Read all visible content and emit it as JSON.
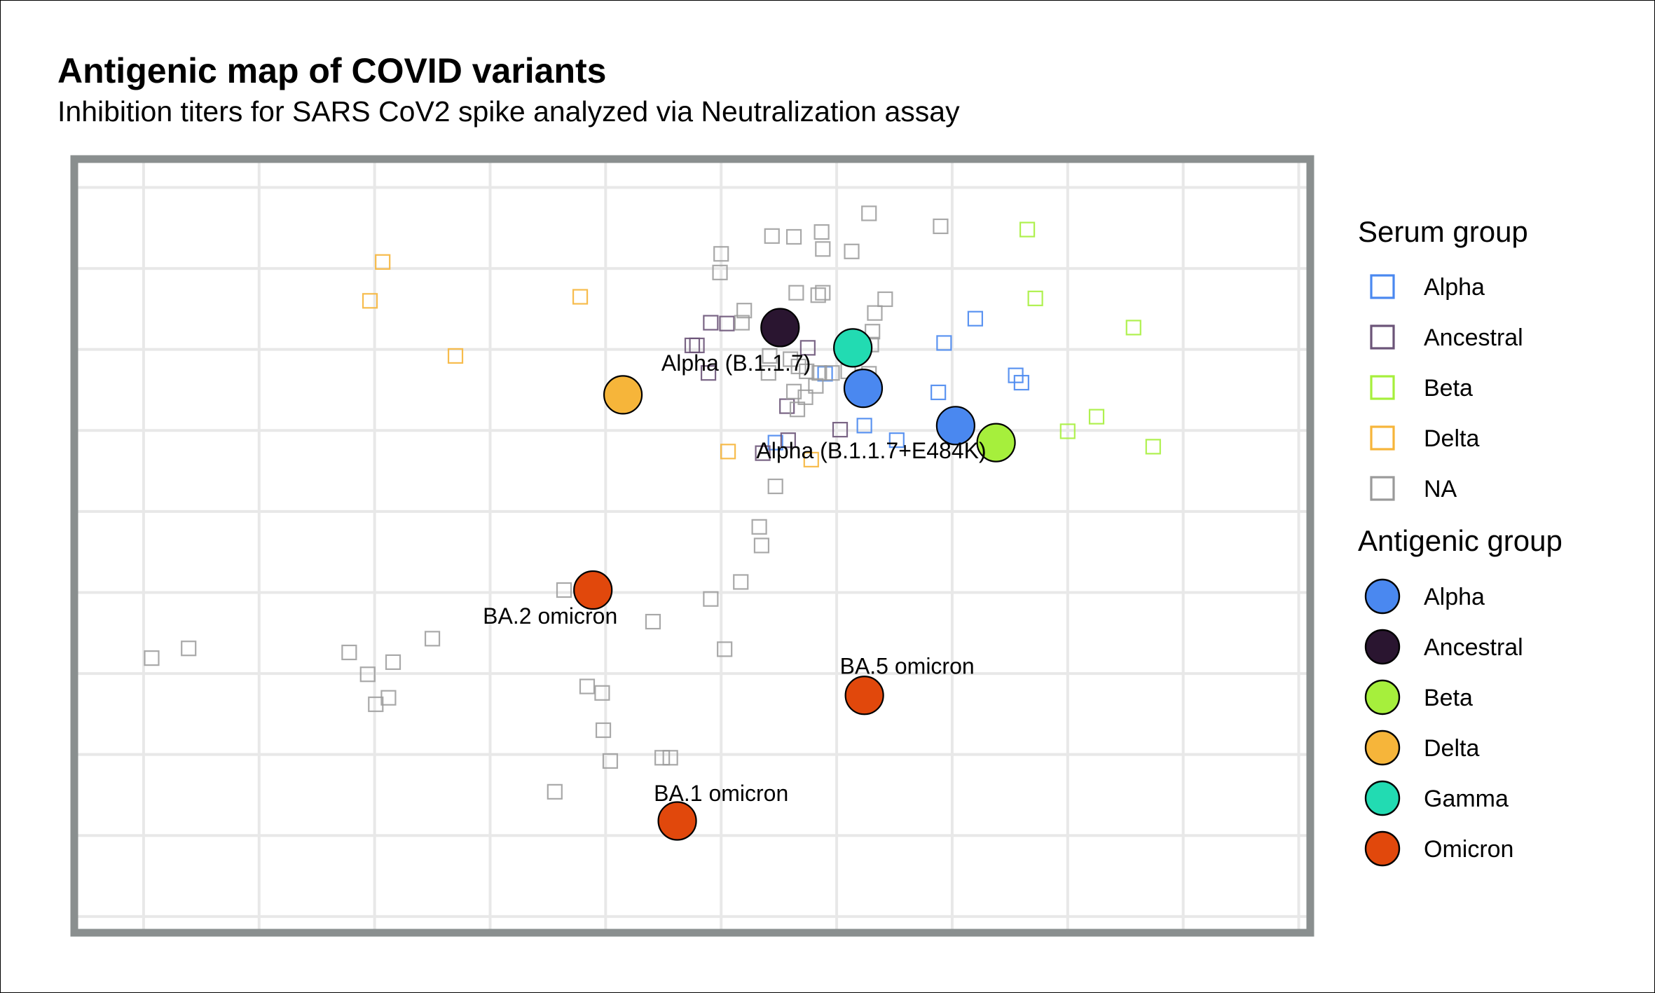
{
  "title": "Antigenic map of COVID variants",
  "subtitle": "Inhibition titers for SARS CoV2 spike analyzed via Neutralization assay",
  "chart_data": {
    "type": "scatter",
    "title": "Antigenic map of COVID variants",
    "subtitle": "Inhibition titers for SARS CoV2 spike analyzed via Neutralization assay",
    "xlabel": "",
    "ylabel": "",
    "xlim": [
      -5.6,
      5.1
    ],
    "ylim": [
      -6.2,
      3.35
    ],
    "grid": true,
    "axis_ticks_shown": false,
    "colors": {
      "Alpha": "#4a88f0",
      "Ancestral": "#2a1530",
      "Beta": "#a6ef3c",
      "Delta": "#f6b53a",
      "Gamma": "#22dbb2",
      "Omicron": "#e1480c",
      "NA": "#9a9a9a",
      "AncestralSerum": "#6b5478",
      "frame": "#8a8f8f",
      "grid": "#e8e8e8"
    },
    "legend_serum": {
      "title": "Serum group",
      "entries": [
        {
          "label": "Alpha",
          "key": "Alpha"
        },
        {
          "label": "Ancestral",
          "key": "AncestralSerum"
        },
        {
          "label": "Beta",
          "key": "Beta"
        },
        {
          "label": "Delta",
          "key": "Delta"
        },
        {
          "label": "NA",
          "key": "NA"
        }
      ]
    },
    "legend_antigen": {
      "title": "Antigenic group",
      "entries": [
        {
          "label": "Alpha",
          "key": "Alpha"
        },
        {
          "label": "Ancestral",
          "key": "Ancestral"
        },
        {
          "label": "Beta",
          "key": "Beta"
        },
        {
          "label": "Delta",
          "key": "Delta"
        },
        {
          "label": "Gamma",
          "key": "Gamma"
        },
        {
          "label": "Omicron",
          "key": "Omicron"
        }
      ]
    },
    "antigens": [
      {
        "group": "Ancestral",
        "x": 0.51,
        "y": 1.27,
        "label": ""
      },
      {
        "group": "Gamma",
        "x": 1.14,
        "y": 1.02,
        "label": ""
      },
      {
        "group": "Alpha",
        "x": 1.23,
        "y": 0.52,
        "label": "Alpha (B.1.1.7)",
        "label_dx": -1.1,
        "label_dy": 0.29
      },
      {
        "group": "Alpha",
        "x": 2.03,
        "y": 0.06,
        "label": ""
      },
      {
        "group": "Beta",
        "x": 2.38,
        "y": -0.15,
        "label": "Alpha (B.1.1.7+E484K)",
        "label_dx": -1.08,
        "label_dy": -0.12
      },
      {
        "group": "Delta",
        "x": -0.85,
        "y": 0.44,
        "label": ""
      },
      {
        "group": "Omicron",
        "x": -1.11,
        "y": -1.97,
        "label": "BA.2 omicron",
        "label_dx": -0.37,
        "label_dy": -0.34
      },
      {
        "group": "Omicron",
        "x": 1.24,
        "y": -3.27,
        "label": "BA.5 omicron",
        "label_dx": 0.37,
        "label_dy": 0.34
      },
      {
        "group": "Omicron",
        "x": -0.38,
        "y": -4.82,
        "label": "BA.1 omicron",
        "label_dx": 0.38,
        "label_dy": 0.32
      }
    ],
    "sera": [
      {
        "group": "Alpha",
        "x": 2.2,
        "y": 1.38
      },
      {
        "group": "Alpha",
        "x": 1.93,
        "y": 1.08
      },
      {
        "group": "Alpha",
        "x": 1.88,
        "y": 0.47
      },
      {
        "group": "Alpha",
        "x": 2.55,
        "y": 0.68
      },
      {
        "group": "Alpha",
        "x": 2.6,
        "y": 0.59
      },
      {
        "group": "Alpha",
        "x": 1.24,
        "y": 0.06
      },
      {
        "group": "Alpha",
        "x": 1.52,
        "y": -0.12
      },
      {
        "group": "Alpha",
        "x": 0.47,
        "y": -0.15
      },
      {
        "group": "Alpha",
        "x": 0.9,
        "y": 0.7
      },
      {
        "group": "Ancestral",
        "x": -0.09,
        "y": 1.33
      },
      {
        "group": "Ancestral",
        "x": 0.05,
        "y": 1.32
      },
      {
        "group": "Ancestral",
        "x": -0.25,
        "y": 1.05
      },
      {
        "group": "Ancestral",
        "x": -0.21,
        "y": 1.05
      },
      {
        "group": "Ancestral",
        "x": -0.11,
        "y": 0.71
      },
      {
        "group": "Ancestral",
        "x": 0.75,
        "y": 1.02
      },
      {
        "group": "Ancestral",
        "x": 0.57,
        "y": 0.3
      },
      {
        "group": "Ancestral",
        "x": 1.03,
        "y": 0.01
      },
      {
        "group": "Ancestral",
        "x": 0.58,
        "y": -0.12
      },
      {
        "group": "Ancestral",
        "x": 0.36,
        "y": -0.28
      },
      {
        "group": "Beta",
        "x": 2.65,
        "y": 2.48
      },
      {
        "group": "Beta",
        "x": 2.72,
        "y": 1.63
      },
      {
        "group": "Beta",
        "x": 3.57,
        "y": 1.27
      },
      {
        "group": "Beta",
        "x": 3.25,
        "y": 0.17
      },
      {
        "group": "Beta",
        "x": 3.0,
        "y": -0.01
      },
      {
        "group": "Beta",
        "x": 3.74,
        "y": -0.2
      },
      {
        "group": "Delta",
        "x": -2.93,
        "y": 2.08
      },
      {
        "group": "Delta",
        "x": -3.04,
        "y": 1.6
      },
      {
        "group": "Delta",
        "x": -1.22,
        "y": 1.65
      },
      {
        "group": "Delta",
        "x": -2.3,
        "y": 0.92
      },
      {
        "group": "Delta",
        "x": 0.06,
        "y": -0.26
      },
      {
        "group": "Delta",
        "x": 0.78,
        "y": -0.36
      },
      {
        "group": "NA",
        "x": 1.28,
        "y": 2.68
      },
      {
        "group": "NA",
        "x": 1.9,
        "y": 2.52
      },
      {
        "group": "NA",
        "x": 0.44,
        "y": 2.4
      },
      {
        "group": "NA",
        "x": 0.63,
        "y": 2.39
      },
      {
        "group": "NA",
        "x": 0.87,
        "y": 2.45
      },
      {
        "group": "NA",
        "x": 0.88,
        "y": 2.24
      },
      {
        "group": "NA",
        "x": 1.13,
        "y": 2.21
      },
      {
        "group": "NA",
        "x": 0.0,
        "y": 2.18
      },
      {
        "group": "NA",
        "x": -0.01,
        "y": 1.95
      },
      {
        "group": "NA",
        "x": 0.65,
        "y": 1.7
      },
      {
        "group": "NA",
        "x": 0.88,
        "y": 1.7
      },
      {
        "group": "NA",
        "x": 0.84,
        "y": 1.67
      },
      {
        "group": "NA",
        "x": 1.42,
        "y": 1.62
      },
      {
        "group": "NA",
        "x": 1.33,
        "y": 1.45
      },
      {
        "group": "NA",
        "x": 0.2,
        "y": 1.48
      },
      {
        "group": "NA",
        "x": 0.18,
        "y": 1.33
      },
      {
        "group": "NA",
        "x": 1.31,
        "y": 1.22
      },
      {
        "group": "NA",
        "x": 1.3,
        "y": 1.06
      },
      {
        "group": "NA",
        "x": 0.42,
        "y": 0.92
      },
      {
        "group": "NA",
        "x": 0.6,
        "y": 0.88
      },
      {
        "group": "NA",
        "x": 0.67,
        "y": 0.79
      },
      {
        "group": "NA",
        "x": 0.74,
        "y": 0.73
      },
      {
        "group": "NA",
        "x": 0.85,
        "y": 0.71
      },
      {
        "group": "NA",
        "x": 0.96,
        "y": 0.71
      },
      {
        "group": "NA",
        "x": 1.1,
        "y": 0.73
      },
      {
        "group": "NA",
        "x": 1.28,
        "y": 0.7
      },
      {
        "group": "NA",
        "x": 0.41,
        "y": 0.71
      },
      {
        "group": "NA",
        "x": 0.82,
        "y": 0.55
      },
      {
        "group": "NA",
        "x": 0.63,
        "y": 0.48
      },
      {
        "group": "NA",
        "x": 0.73,
        "y": 0.41
      },
      {
        "group": "NA",
        "x": 0.66,
        "y": 0.26
      },
      {
        "group": "NA",
        "x": 0.47,
        "y": -0.69
      },
      {
        "group": "NA",
        "x": 0.33,
        "y": -1.19
      },
      {
        "group": "NA",
        "x": 0.35,
        "y": -1.42
      },
      {
        "group": "NA",
        "x": 0.17,
        "y": -1.87
      },
      {
        "group": "NA",
        "x": -0.09,
        "y": -2.08
      },
      {
        "group": "NA",
        "x": -0.59,
        "y": -2.36
      },
      {
        "group": "NA",
        "x": 0.03,
        "y": -2.7
      },
      {
        "group": "NA",
        "x": -1.36,
        "y": -1.97
      },
      {
        "group": "NA",
        "x": -4.61,
        "y": -2.69
      },
      {
        "group": "NA",
        "x": -4.93,
        "y": -2.81
      },
      {
        "group": "NA",
        "x": -3.06,
        "y": -3.01
      },
      {
        "group": "NA",
        "x": -3.22,
        "y": -2.74
      },
      {
        "group": "NA",
        "x": -2.5,
        "y": -2.57
      },
      {
        "group": "NA",
        "x": -2.84,
        "y": -2.86
      },
      {
        "group": "NA",
        "x": -2.88,
        "y": -3.3
      },
      {
        "group": "NA",
        "x": -2.99,
        "y": -3.38
      },
      {
        "group": "NA",
        "x": -1.16,
        "y": -3.16
      },
      {
        "group": "NA",
        "x": -1.03,
        "y": -3.24
      },
      {
        "group": "NA",
        "x": -1.02,
        "y": -3.7
      },
      {
        "group": "NA",
        "x": -0.96,
        "y": -4.08
      },
      {
        "group": "NA",
        "x": -0.51,
        "y": -4.04
      },
      {
        "group": "NA",
        "x": -0.44,
        "y": -4.04
      },
      {
        "group": "NA",
        "x": -1.44,
        "y": -4.46
      }
    ]
  }
}
